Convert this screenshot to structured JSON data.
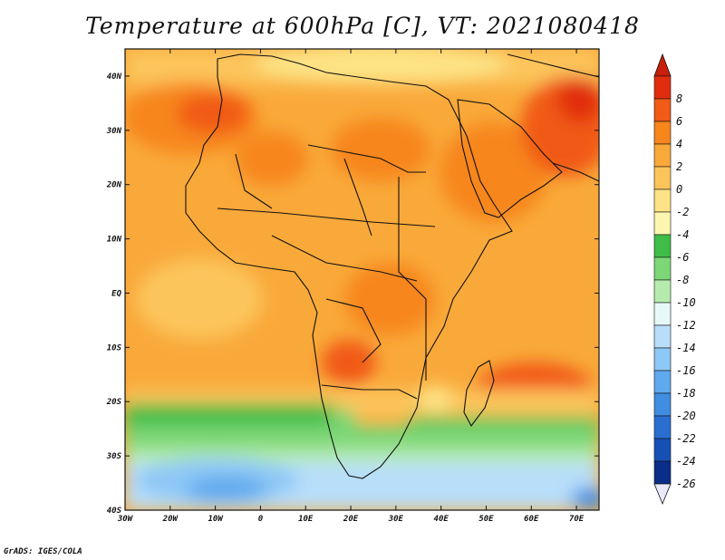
{
  "title": "Temperature at 600hPa [C], VT: 2021080418",
  "credit": "GrADS: IGES/COLA",
  "map": {
    "lon_range": [
      -30,
      75
    ],
    "lat_range": [
      -40,
      45
    ],
    "lon_ticks": [
      {
        "value": -30,
        "label": "30W"
      },
      {
        "value": -20,
        "label": "20W"
      },
      {
        "value": -10,
        "label": "10W"
      },
      {
        "value": 0,
        "label": "0"
      },
      {
        "value": 10,
        "label": "10E"
      },
      {
        "value": 20,
        "label": "20E"
      },
      {
        "value": 30,
        "label": "30E"
      },
      {
        "value": 40,
        "label": "40E"
      },
      {
        "value": 50,
        "label": "50E"
      },
      {
        "value": 60,
        "label": "60E"
      },
      {
        "value": 70,
        "label": "70E"
      }
    ],
    "lat_ticks": [
      {
        "value": 40,
        "label": "40N"
      },
      {
        "value": 30,
        "label": "30N"
      },
      {
        "value": 20,
        "label": "20N"
      },
      {
        "value": 10,
        "label": "10N"
      },
      {
        "value": 0,
        "label": "EQ"
      },
      {
        "value": -10,
        "label": "10S"
      },
      {
        "value": -20,
        "label": "20S"
      },
      {
        "value": -30,
        "label": "30S"
      },
      {
        "value": -40,
        "label": "40S"
      }
    ]
  },
  "colorbar": {
    "levels": [
      {
        "label": "8",
        "color": "#e12d0e"
      },
      {
        "label": "6",
        "color": "#f15a17"
      },
      {
        "label": "4",
        "color": "#f7861d"
      },
      {
        "label": "2",
        "color": "#f9a93a"
      },
      {
        "label": "0",
        "color": "#fcc55b"
      },
      {
        "label": "-2",
        "color": "#fde385"
      },
      {
        "label": "-4",
        "color": "#fdf6b0"
      },
      {
        "label": "-6",
        "color": "#3fbd48"
      },
      {
        "label": "-8",
        "color": "#7dd776"
      },
      {
        "label": "-10",
        "color": "#b5ecae"
      },
      {
        "label": "-12",
        "color": "#e6f8f8"
      },
      {
        "label": "-14",
        "color": "#b8defa"
      },
      {
        "label": "-16",
        "color": "#8ec8f6"
      },
      {
        "label": "-18",
        "color": "#5fa9ee"
      },
      {
        "label": "-20",
        "color": "#3f8ee2"
      },
      {
        "label": "-22",
        "color": "#2a6fd0"
      },
      {
        "label": "-24",
        "color": "#1750b4"
      },
      {
        "label": "-26",
        "color": "#0b2d8a"
      }
    ],
    "top_color": "#c81e0a",
    "bottom_color": "#e9e9fb"
  }
}
